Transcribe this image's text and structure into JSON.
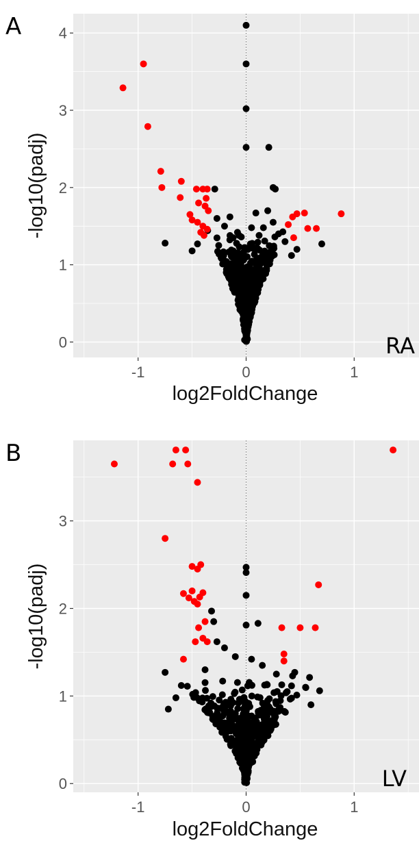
{
  "chart_data": [
    {
      "type": "scatter",
      "panel_letter": "A",
      "tag": "RA",
      "xlabel": "log2FoldChange",
      "ylabel": "-log10(padj)",
      "xlim": [
        -1.6,
        1.6
      ],
      "ylim": [
        -0.2,
        4.25
      ],
      "xticks": [
        -1,
        0,
        1
      ],
      "xtick_labels": [
        "-1",
        "0",
        "1"
      ],
      "yticks": [
        0,
        1,
        2,
        3,
        4
      ],
      "ytick_labels": [
        "0",
        "1",
        "2",
        "3",
        "4"
      ],
      "vline": 0,
      "grid": true,
      "colors": {
        "significant": "#ff0000",
        "not_significant": "#000000",
        "panel_bg": "#ebebeb",
        "grid": "#ffffff"
      },
      "significant": [
        [
          -1.14,
          3.29
        ],
        [
          -0.95,
          3.6
        ],
        [
          -0.91,
          2.79
        ],
        [
          -0.79,
          2.21
        ],
        [
          -0.78,
          2.0
        ],
        [
          -0.6,
          2.08
        ],
        [
          -0.61,
          1.87
        ],
        [
          -0.46,
          1.98
        ],
        [
          -0.4,
          1.98
        ],
        [
          -0.36,
          1.98
        ],
        [
          -0.44,
          1.8
        ],
        [
          -0.37,
          1.86
        ],
        [
          -0.38,
          1.76
        ],
        [
          -0.35,
          1.7
        ],
        [
          -0.52,
          1.65
        ],
        [
          -0.5,
          1.58
        ],
        [
          -0.45,
          1.55
        ],
        [
          -0.4,
          1.5
        ],
        [
          -0.36,
          1.46
        ],
        [
          -0.42,
          1.42
        ],
        [
          -0.39,
          1.38
        ],
        [
          0.39,
          1.52
        ],
        [
          0.43,
          1.62
        ],
        [
          0.47,
          1.66
        ],
        [
          0.54,
          1.67
        ],
        [
          0.57,
          1.47
        ],
        [
          0.65,
          1.47
        ],
        [
          0.88,
          1.66
        ],
        [
          0.44,
          1.35
        ]
      ],
      "nonsig_column": [
        [
          0,
          4.1
        ],
        [
          0,
          3.6
        ],
        [
          0,
          3.02
        ],
        [
          0,
          2.52
        ],
        [
          0.21,
          2.52
        ],
        [
          0.27,
          1.98
        ],
        [
          0.25,
          2.0
        ],
        [
          -0.29,
          1.98
        ],
        [
          -0.75,
          1.28
        ],
        [
          0.7,
          1.27
        ],
        [
          0.09,
          1.67
        ],
        [
          -0.15,
          1.62
        ],
        [
          0.2,
          1.7
        ],
        [
          -0.27,
          1.6
        ],
        [
          0.25,
          1.55
        ],
        [
          0.16,
          1.48
        ],
        [
          -0.2,
          1.5
        ],
        [
          0.3,
          1.4
        ],
        [
          0.36,
          1.3
        ],
        [
          -0.5,
          1.18
        ],
        [
          -0.45,
          1.27
        ],
        [
          0.47,
          1.2
        ],
        [
          0.42,
          1.12
        ],
        [
          0.05,
          1.48
        ],
        [
          -0.08,
          1.42
        ],
        [
          0.12,
          1.38
        ],
        [
          -0.12,
          1.35
        ]
      ],
      "nonsig_cloud": {
        "count": 520,
        "seed": 11,
        "peak": 1.45,
        "xmax": 0.38,
        "exponent": 0.6
      }
    },
    {
      "type": "scatter",
      "panel_letter": "B",
      "tag": "LV",
      "xlabel": "log2FoldChange",
      "ylabel": "-log10(padj)",
      "xlim": [
        -1.6,
        1.6
      ],
      "ylim": [
        -0.1,
        3.92
      ],
      "xticks": [
        -1,
        0,
        1
      ],
      "xtick_labels": [
        "-1",
        "0",
        "1"
      ],
      "yticks": [
        0,
        1,
        2,
        3
      ],
      "ytick_labels": [
        "0",
        "1",
        "2",
        "3"
      ],
      "vline": 0,
      "grid": true,
      "colors": {
        "significant": "#ff0000",
        "not_significant": "#000000",
        "panel_bg": "#ebebeb",
        "grid": "#ffffff"
      },
      "significant": [
        [
          -1.22,
          3.65
        ],
        [
          -0.65,
          3.81
        ],
        [
          -0.56,
          3.81
        ],
        [
          -0.68,
          3.65
        ],
        [
          -0.54,
          3.65
        ],
        [
          -0.45,
          3.44
        ],
        [
          -0.75,
          2.8
        ],
        [
          -0.5,
          2.48
        ],
        [
          -0.42,
          2.5
        ],
        [
          -0.45,
          2.45
        ],
        [
          -0.58,
          2.17
        ],
        [
          -0.5,
          2.2
        ],
        [
          -0.53,
          2.12
        ],
        [
          -0.43,
          2.13
        ],
        [
          -0.4,
          2.18
        ],
        [
          -0.48,
          2.08
        ],
        [
          -0.45,
          2.05
        ],
        [
          -0.44,
          1.78
        ],
        [
          -0.38,
          1.85
        ],
        [
          -0.4,
          1.66
        ],
        [
          -0.36,
          1.62
        ],
        [
          -0.47,
          1.62
        ],
        [
          -0.58,
          1.42
        ],
        [
          1.36,
          3.81
        ],
        [
          0.67,
          2.27
        ],
        [
          0.33,
          1.78
        ],
        [
          0.5,
          1.78
        ],
        [
          0.64,
          1.78
        ],
        [
          0.35,
          1.48
        ],
        [
          0.35,
          1.4
        ]
      ],
      "nonsig_column": [
        [
          0,
          2.47
        ],
        [
          0,
          2.41
        ],
        [
          0,
          2.15
        ],
        [
          0,
          1.81
        ],
        [
          0.11,
          1.83
        ],
        [
          -0.32,
          1.97
        ],
        [
          -0.3,
          1.85
        ],
        [
          -0.27,
          1.62
        ],
        [
          -0.2,
          1.55
        ],
        [
          -0.75,
          1.27
        ],
        [
          0.45,
          1.27
        ],
        [
          0.43,
          1.23
        ],
        [
          0.68,
          1.06
        ],
        [
          0.05,
          1.42
        ],
        [
          -0.1,
          1.45
        ],
        [
          0.15,
          1.35
        ],
        [
          -0.6,
          1.12
        ],
        [
          0.55,
          1.1
        ],
        [
          -0.65,
          0.98
        ],
        [
          0.6,
          0.9
        ],
        [
          -0.72,
          0.85
        ],
        [
          0.28,
          1.25
        ],
        [
          -0.38,
          1.3
        ],
        [
          0.38,
          1.05
        ]
      ],
      "nonsig_cloud": {
        "count": 480,
        "seed": 23,
        "peak": 1.25,
        "xmax": 0.7,
        "exponent": 0.7
      }
    }
  ]
}
